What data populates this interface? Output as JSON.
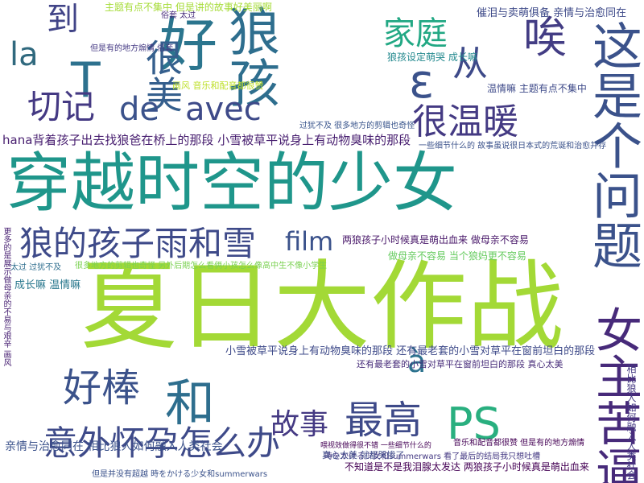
{
  "words": [
    {
      "text": "夏日大作战",
      "color": "#a3d936"
    },
    {
      "text": "穿越时空的少女",
      "color": "#1f968b"
    },
    {
      "text": "狼孩",
      "color": "#2e6e8e"
    },
    {
      "text": "好",
      "color": "#2b758e"
    },
    {
      "text": "这是个问题",
      "color": "#3b528b"
    },
    {
      "text": "女主苦逼",
      "color": "#472a7a"
    },
    {
      "text": "和",
      "color": "#2e6e8e"
    },
    {
      "text": "PS",
      "color": "#29af7f"
    },
    {
      "text": "T",
      "color": "#2d718e"
    },
    {
      "text": "ε",
      "color": "#3b528b"
    },
    {
      "text": "很美",
      "color": "#355f8d"
    },
    {
      "text": "狼的孩子雨和雪",
      "color": "#3e4a89"
    },
    {
      "text": "意外怀孕怎么办",
      "color": "#3e4a89"
    },
    {
      "text": "好棒",
      "color": "#3b528b"
    },
    {
      "text": "最高",
      "color": "#3e4a89"
    },
    {
      "text": "很温暖",
      "color": "#443a83"
    },
    {
      "text": "家庭",
      "color": "#22a884"
    },
    {
      "text": "从",
      "color": "#3e4a89"
    },
    {
      "text": "唉",
      "color": "#433d84"
    },
    {
      "text": "到",
      "color": "#414487"
    },
    {
      "text": "la",
      "color": "#30697e"
    },
    {
      "text": "切记",
      "color": "#443983"
    },
    {
      "text": "de",
      "color": "#3b528b"
    },
    {
      "text": "avec",
      "color": "#3e4a89"
    },
    {
      "text": "film",
      "color": "#3b528b"
    },
    {
      "text": "故事",
      "color": "#443983"
    },
    {
      "text": "à",
      "color": "#2c728e"
    },
    {
      "text": "hana背着孩子出去找狼爸在桥上的那段 小雪被草平说身上有动物臭味的那段",
      "color": "#481f70"
    },
    {
      "text": "小雪被草平说身上有动物臭味的那段 还有最老套的小雪对草平在窗前坦白的那段",
      "color": "#3e4a89"
    },
    {
      "text": "还有最老套的小雪对草平在窗前坦白的那段 真心太美",
      "color": "#472c7a"
    },
    {
      "text": "两狼孩子小时候真是萌出血来 做母亲不容易",
      "color": "#481769"
    },
    {
      "text": "做母亲不容易 当个狼妈更不容易",
      "color": "#65cb5e"
    },
    {
      "text": "很多地方的剪辑也奇怪 另外后期怎么看俩小孩怎么像高中生不像小学生",
      "color": "#7ad151"
    },
    {
      "text": "亲情与治愈同在 相比狼人如何融入人类社会",
      "color": "#3b528b"
    },
    {
      "text": "不知道是不是我泪腺太发达 两狼孩子小时候真是萌出血来",
      "color": "#440154"
    },
    {
      "text": "但是并没有超越 時をかける少女和summerwars",
      "color": "#3b528b"
    },
    {
      "text": "時をかける少女和summerwars 看了最后的结局我只想吐槽",
      "color": "#443983"
    },
    {
      "text": "音乐和配音都很赞 但是有的地方煽情",
      "color": "#440154"
    },
    {
      "text": "真心太美 就都哭惨了",
      "color": "#3e4a89"
    },
    {
      "text": "成长嘛 温情嘛",
      "color": "#2a788e"
    },
    {
      "text": "太过 过犹不及",
      "color": "#2e6e8e"
    },
    {
      "text": "主题有点不集中 但是讲的故事好美丽啊",
      "color": "#a5db36"
    },
    {
      "text": "但是有的地方煽情 俗套",
      "color": "#443983"
    },
    {
      "text": "催泪与卖萌俱备 亲情与治愈同在",
      "color": "#3e4a89"
    },
    {
      "text": "狼孩设定萌哭 成长嘛",
      "color": "#23898e"
    },
    {
      "text": "温情嘛 主题有点不集中",
      "color": "#3e4a89"
    },
    {
      "text": "画风 音乐和配音都很赞",
      "color": "#bddf26"
    },
    {
      "text": "过犹不及 很多地方的剪辑也奇怪",
      "color": "#39558c"
    },
    {
      "text": "一些细节什么的 故事虽说很日本式的荒诞和治愈并存",
      "color": "#3b528b"
    },
    {
      "text": "相比狼人如何融入人类社会",
      "color": "#443983"
    },
    {
      "text": "更多的是展示做母亲的不易与艰辛 画风",
      "color": "#482173"
    },
    {
      "text": "俗套 太过",
      "color": "#472d7b"
    },
    {
      "text": "喂视效做得很不错 一些细节什么的",
      "color": "#440154"
    }
  ]
}
